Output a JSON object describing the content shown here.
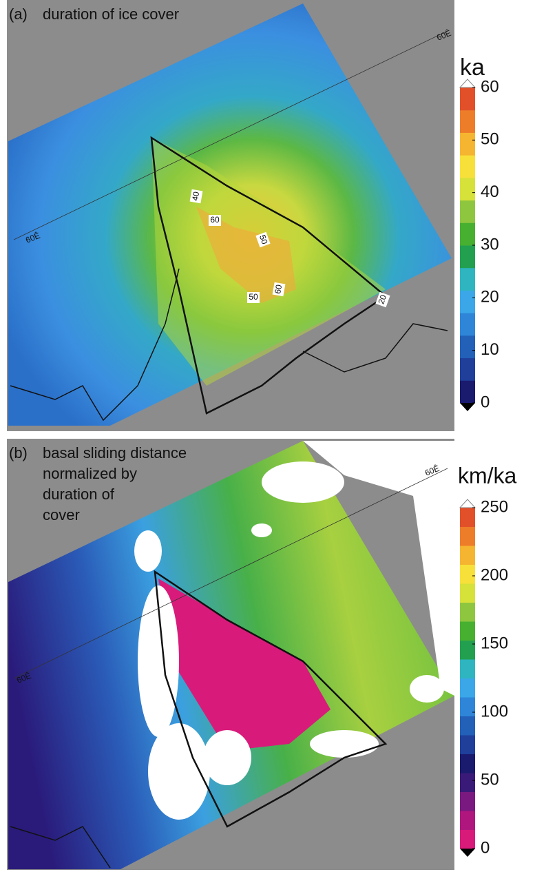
{
  "panels": [
    {
      "label": "(a)",
      "title_lines": [
        "duration of ice cover"
      ],
      "unit": "ka",
      "colorbar": {
        "lim": [
          0,
          60
        ],
        "ticks": [
          0,
          10,
          20,
          30,
          40,
          50,
          60
        ],
        "colors": [
          "#1a1a6e",
          "#1f3f9a",
          "#2360b8",
          "#2f86d8",
          "#3ba7e8",
          "#2fb5c0",
          "#22a050",
          "#48b030",
          "#8ec63f",
          "#d6e13a",
          "#f7e03a",
          "#f5b530",
          "#ee7d2a",
          "#e2502a"
        ]
      },
      "meridian_labels": [
        "60Ê",
        "60Ê"
      ],
      "contour_labels": [
        "40",
        "60",
        "50",
        "50",
        "60",
        "20"
      ]
    },
    {
      "label": "(b)",
      "title_lines": [
        "basal sliding distance",
        "normalized by",
        "duration of",
        "cover"
      ],
      "unit": "km/ka",
      "colorbar": {
        "lim": [
          0,
          250
        ],
        "ticks": [
          0,
          50,
          100,
          150,
          200,
          250
        ],
        "colors": [
          "#d81b7a",
          "#b0177e",
          "#7a1a80",
          "#3a1a78",
          "#1a1a6e",
          "#1f3f9a",
          "#2360b8",
          "#2f86d8",
          "#3ba7e8",
          "#2fb5c0",
          "#22a050",
          "#48b030",
          "#8ec63f",
          "#d6e13a",
          "#f7e03a",
          "#f5b530",
          "#ee7d2a",
          "#e2502a"
        ]
      },
      "meridian_labels": [
        "60Ê",
        "60Ê"
      ]
    }
  ]
}
